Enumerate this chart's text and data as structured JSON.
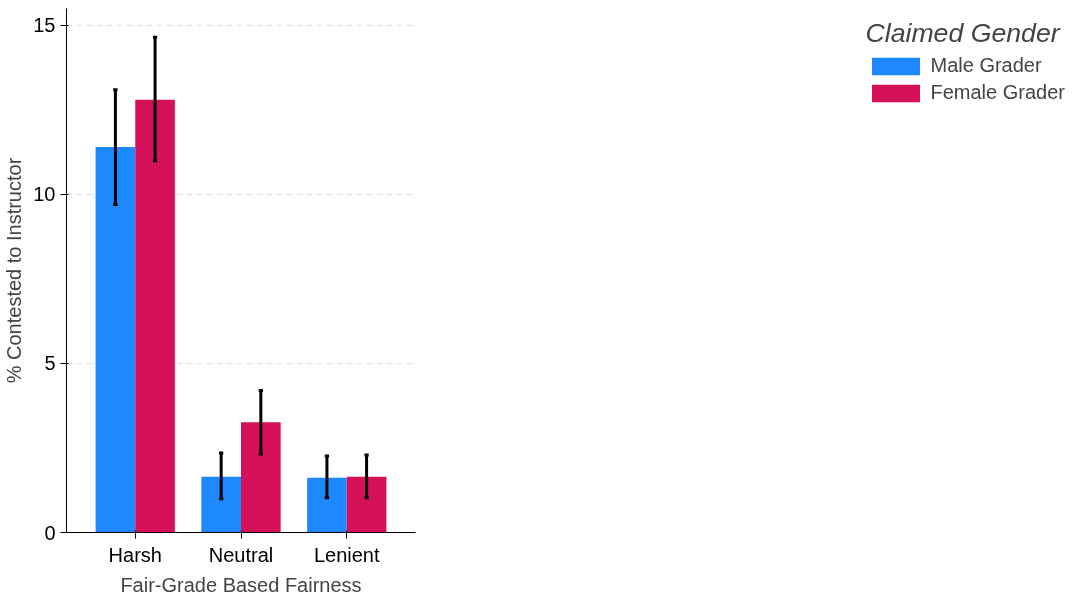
{
  "chart_data": {
    "type": "bar",
    "xlabel": "Fair-Grade Based Fairness",
    "ylabel": "% Contested to Instructor",
    "legend_title": "Claimed Gender",
    "categories": [
      "Harsh",
      "Neutral",
      "Lenient"
    ],
    "series": [
      {
        "name": "Male Grader",
        "color": "#1e88ff",
        "values": [
          11.4,
          1.65,
          1.62
        ],
        "errors": [
          [
            9.7,
            13.1
          ],
          [
            1.0,
            2.35
          ],
          [
            1.03,
            2.26
          ]
        ]
      },
      {
        "name": "Female Grader",
        "color": "#d41159",
        "values": [
          12.8,
          3.26,
          1.65
        ],
        "errors": [
          [
            11.0,
            14.65
          ],
          [
            2.32,
            4.2
          ],
          [
            1.03,
            2.29
          ]
        ]
      }
    ],
    "ylim": [
      0,
      15.5
    ],
    "yticks": [
      0,
      5,
      10,
      15
    ],
    "grid": "y",
    "legend": "right"
  }
}
